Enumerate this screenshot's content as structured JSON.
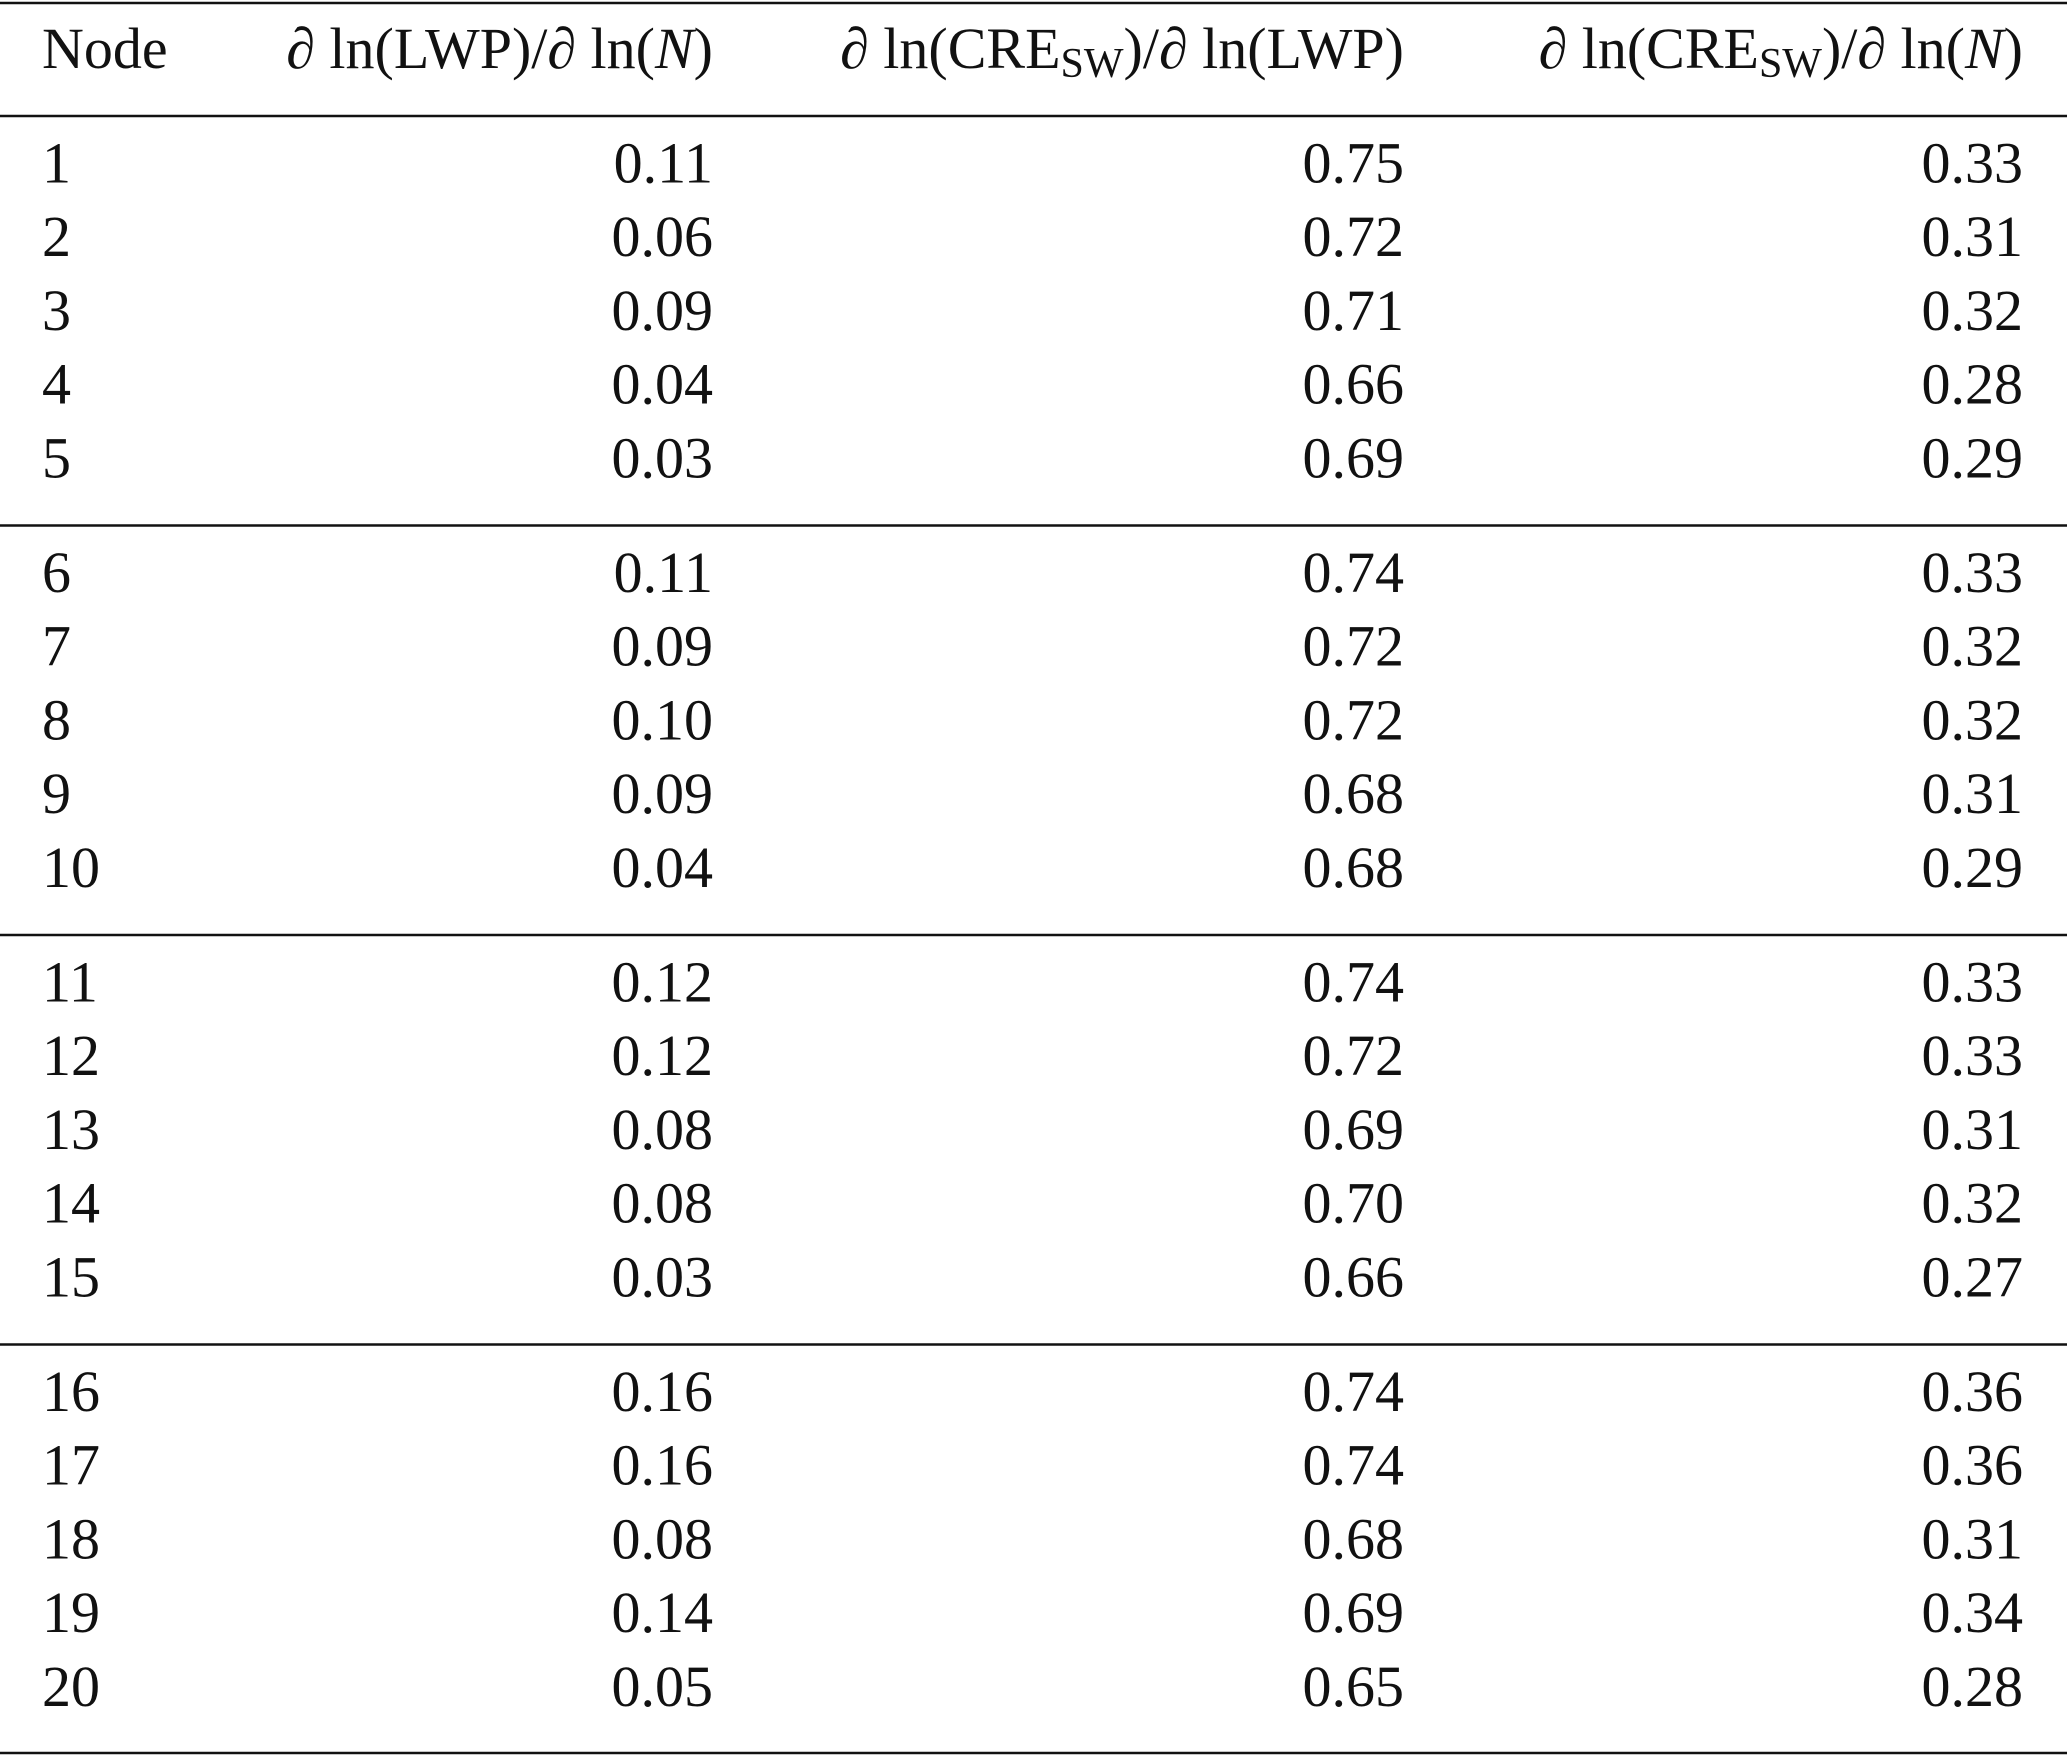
{
  "table": {
    "header": [
      {
        "parts": [
          {
            "text": "Node"
          }
        ]
      },
      {
        "parts": [
          {
            "text": "∂ ln(LWP)/∂ ln("
          },
          {
            "text": "N",
            "italic": true
          },
          {
            "text": ")"
          }
        ]
      },
      {
        "parts": [
          {
            "text": "∂ ln(CRE"
          },
          {
            "text": "SW",
            "sub": true
          },
          {
            "text": ")/∂ ln(LWP)"
          }
        ]
      },
      {
        "parts": [
          {
            "text": "∂ ln(CRE"
          },
          {
            "text": "SW",
            "sub": true
          },
          {
            "text": ")/∂ ln("
          },
          {
            "text": "N",
            "italic": true
          },
          {
            "text": ")"
          }
        ]
      }
    ],
    "groups": [
      {
        "rows": [
          [
            "1",
            "0.11",
            "0.75",
            "0.33"
          ],
          [
            "2",
            "0.06",
            "0.72",
            "0.31"
          ],
          [
            "3",
            "0.09",
            "0.71",
            "0.32"
          ],
          [
            "4",
            "0.04",
            "0.66",
            "0.28"
          ],
          [
            "5",
            "0.03",
            "0.69",
            "0.29"
          ]
        ]
      },
      {
        "rows": [
          [
            "6",
            "0.11",
            "0.74",
            "0.33"
          ],
          [
            "7",
            "0.09",
            "0.72",
            "0.32"
          ],
          [
            "8",
            "0.10",
            "0.72",
            "0.32"
          ],
          [
            "9",
            "0.09",
            "0.68",
            "0.31"
          ],
          [
            "10",
            "0.04",
            "0.68",
            "0.29"
          ]
        ]
      },
      {
        "rows": [
          [
            "11",
            "0.12",
            "0.74",
            "0.33"
          ],
          [
            "12",
            "0.12",
            "0.72",
            "0.33"
          ],
          [
            "13",
            "0.08",
            "0.69",
            "0.31"
          ],
          [
            "14",
            "0.08",
            "0.70",
            "0.32"
          ],
          [
            "15",
            "0.03",
            "0.66",
            "0.27"
          ]
        ]
      },
      {
        "rows": [
          [
            "16",
            "0.16",
            "0.74",
            "0.36"
          ],
          [
            "17",
            "0.16",
            "0.74",
            "0.36"
          ],
          [
            "18",
            "0.08",
            "0.68",
            "0.31"
          ],
          [
            "19",
            "0.14",
            "0.69",
            "0.34"
          ],
          [
            "20",
            "0.05",
            "0.65",
            "0.28"
          ]
        ]
      }
    ]
  }
}
